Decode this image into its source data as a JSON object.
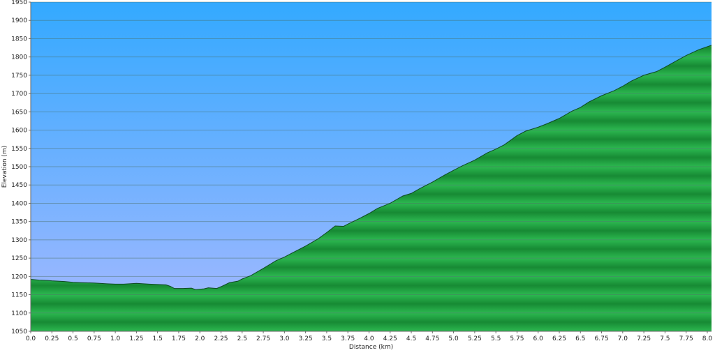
{
  "chart_data": {
    "type": "area",
    "xlabel": "Distance (km)",
    "ylabel": "Elevation (m)",
    "xlim": [
      0.0,
      8.05
    ],
    "ylim": [
      1050,
      1950
    ],
    "x_ticks": [
      0.0,
      0.25,
      0.5,
      0.75,
      1.0,
      1.25,
      1.5,
      1.75,
      2.0,
      2.25,
      2.5,
      2.75,
      3.0,
      3.25,
      3.5,
      3.75,
      4.0,
      4.25,
      4.5,
      4.75,
      5.0,
      5.25,
      5.5,
      5.75,
      6.0,
      6.25,
      6.5,
      6.75,
      7.0,
      7.25,
      7.5,
      7.75,
      8.0
    ],
    "x_tick_labels": [
      "0.0",
      "0.25",
      "0.5",
      "0.75",
      "1.0",
      "1.25",
      "1.5",
      "1.75",
      "2.0",
      "2.25",
      "2.5",
      "2.75",
      "3.0",
      "3.25",
      "3.5",
      "3.75",
      "4.0",
      "4.25",
      "4.5",
      "4.75",
      "5.0",
      "5.25",
      "5.5",
      "5.75",
      "6.0",
      "6.25",
      "6.5",
      "6.75",
      "7.0",
      "7.25",
      "7.5",
      "7.75",
      "8.0"
    ],
    "y_ticks": [
      1050,
      1100,
      1150,
      1200,
      1250,
      1300,
      1350,
      1400,
      1450,
      1500,
      1550,
      1600,
      1650,
      1700,
      1750,
      1800,
      1850,
      1900,
      1950
    ],
    "y_tick_labels": [
      "1050",
      "1100",
      "1150",
      "1200",
      "1250",
      "1300",
      "1350",
      "1400",
      "1450",
      "1500",
      "1550",
      "1600",
      "1650",
      "1700",
      "1750",
      "1800",
      "1850",
      "1900",
      "1950"
    ],
    "grid": "horizontal",
    "series": [
      {
        "points": [
          [
            0.0,
            1192
          ],
          [
            0.1,
            1190
          ],
          [
            0.2,
            1189
          ],
          [
            0.25,
            1188
          ],
          [
            0.4,
            1186
          ],
          [
            0.5,
            1184
          ],
          [
            0.6,
            1183
          ],
          [
            0.75,
            1182
          ],
          [
            0.9,
            1180
          ],
          [
            1.0,
            1179
          ],
          [
            1.1,
            1179
          ],
          [
            1.25,
            1181
          ],
          [
            1.4,
            1179
          ],
          [
            1.5,
            1178
          ],
          [
            1.6,
            1177
          ],
          [
            1.65,
            1173
          ],
          [
            1.7,
            1167
          ],
          [
            1.8,
            1167
          ],
          [
            1.9,
            1168
          ],
          [
            1.95,
            1164
          ],
          [
            2.05,
            1166
          ],
          [
            2.1,
            1169
          ],
          [
            2.2,
            1167
          ],
          [
            2.25,
            1172
          ],
          [
            2.35,
            1183
          ],
          [
            2.45,
            1187
          ],
          [
            2.5,
            1193
          ],
          [
            2.6,
            1202
          ],
          [
            2.75,
            1222
          ],
          [
            2.9,
            1243
          ],
          [
            3.0,
            1253
          ],
          [
            3.1,
            1265
          ],
          [
            3.25,
            1283
          ],
          [
            3.4,
            1303
          ],
          [
            3.5,
            1320
          ],
          [
            3.6,
            1338
          ],
          [
            3.7,
            1337
          ],
          [
            3.75,
            1343
          ],
          [
            3.9,
            1360
          ],
          [
            4.0,
            1372
          ],
          [
            4.1,
            1386
          ],
          [
            4.25,
            1400
          ],
          [
            4.4,
            1420
          ],
          [
            4.5,
            1427
          ],
          [
            4.6,
            1440
          ],
          [
            4.75,
            1458
          ],
          [
            4.9,
            1478
          ],
          [
            5.0,
            1490
          ],
          [
            5.1,
            1502
          ],
          [
            5.25,
            1518
          ],
          [
            5.4,
            1538
          ],
          [
            5.5,
            1548
          ],
          [
            5.6,
            1560
          ],
          [
            5.75,
            1585
          ],
          [
            5.85,
            1597
          ],
          [
            6.0,
            1608
          ],
          [
            6.1,
            1617
          ],
          [
            6.25,
            1632
          ],
          [
            6.4,
            1652
          ],
          [
            6.5,
            1662
          ],
          [
            6.6,
            1677
          ],
          [
            6.75,
            1694
          ],
          [
            6.9,
            1708
          ],
          [
            7.0,
            1720
          ],
          [
            7.1,
            1734
          ],
          [
            7.25,
            1750
          ],
          [
            7.4,
            1760
          ],
          [
            7.5,
            1772
          ],
          [
            7.6,
            1785
          ],
          [
            7.75,
            1804
          ],
          [
            7.9,
            1820
          ],
          [
            8.05,
            1832
          ]
        ]
      }
    ]
  },
  "colors": {
    "sky_top": "#33a9ff",
    "sky_bottom": "#a8b9ff",
    "terrain_light": "#2cb850",
    "terrain_dark": "#178a34",
    "terrain_outline": "#0f4a22",
    "gridline": "#4a6a5a",
    "axis_text": "#222222"
  }
}
